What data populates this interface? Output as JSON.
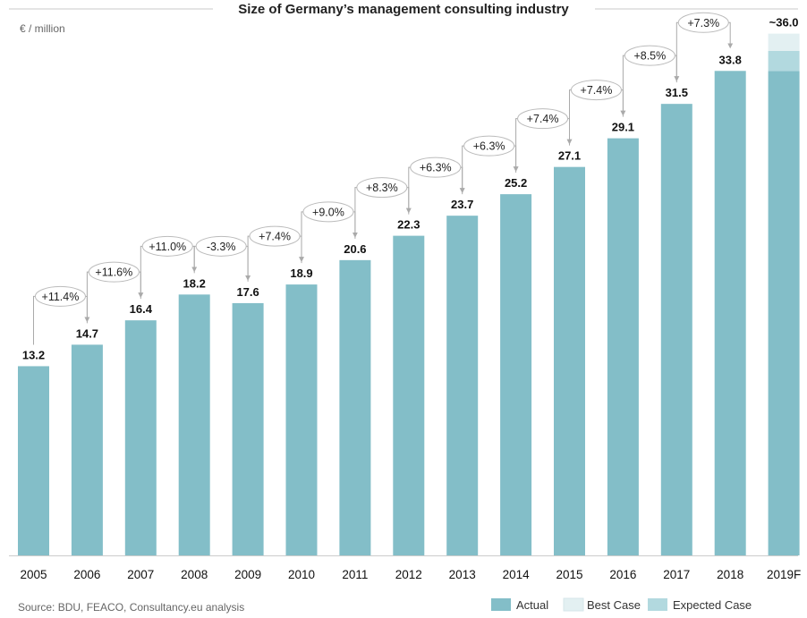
{
  "chart_data": {
    "type": "bar",
    "title": "Size of Germany’s management consulting industry",
    "unit_label": "€ / million",
    "categories": [
      "2005",
      "2006",
      "2007",
      "2008",
      "2009",
      "2010",
      "2011",
      "2012",
      "2013",
      "2014",
      "2015",
      "2016",
      "2017",
      "2018",
      "2019F"
    ],
    "values": [
      13.2,
      14.7,
      16.4,
      18.2,
      17.6,
      18.9,
      20.6,
      22.3,
      23.7,
      25.2,
      27.1,
      29.1,
      31.5,
      33.8,
      33.8
    ],
    "value_labels": [
      "13.2",
      "14.7",
      "16.4",
      "18.2",
      "17.6",
      "18.9",
      "20.6",
      "22.3",
      "23.7",
      "25.2",
      "27.1",
      "29.1",
      "31.5",
      "33.8",
      "~36.0"
    ],
    "growth_labels": [
      "+11.4%",
      "+11.6%",
      "+11.0%",
      "-3.3%",
      "+7.4%",
      "+9.0%",
      "+8.3%",
      "+6.3%",
      "+6.3%",
      "+7.4%",
      "+7.4%",
      "+8.5%",
      "+7.3%"
    ],
    "forecast_stack": {
      "category": "2019F",
      "actual": 33.8,
      "expected_case_top": 35.2,
      "best_case_top": 36.4
    },
    "ylim": [
      0,
      37.5
    ],
    "grid": false,
    "legend": {
      "placement": "bottom-right",
      "items": [
        {
          "name": "Actual",
          "color": "#83bec8"
        },
        {
          "name": "Best Case",
          "color": "#e3f0f2"
        },
        {
          "name": "Expected Case",
          "color": "#b2d9df"
        }
      ]
    },
    "source": "Source: BDU, FEACO, Consultancy.eu analysis"
  }
}
